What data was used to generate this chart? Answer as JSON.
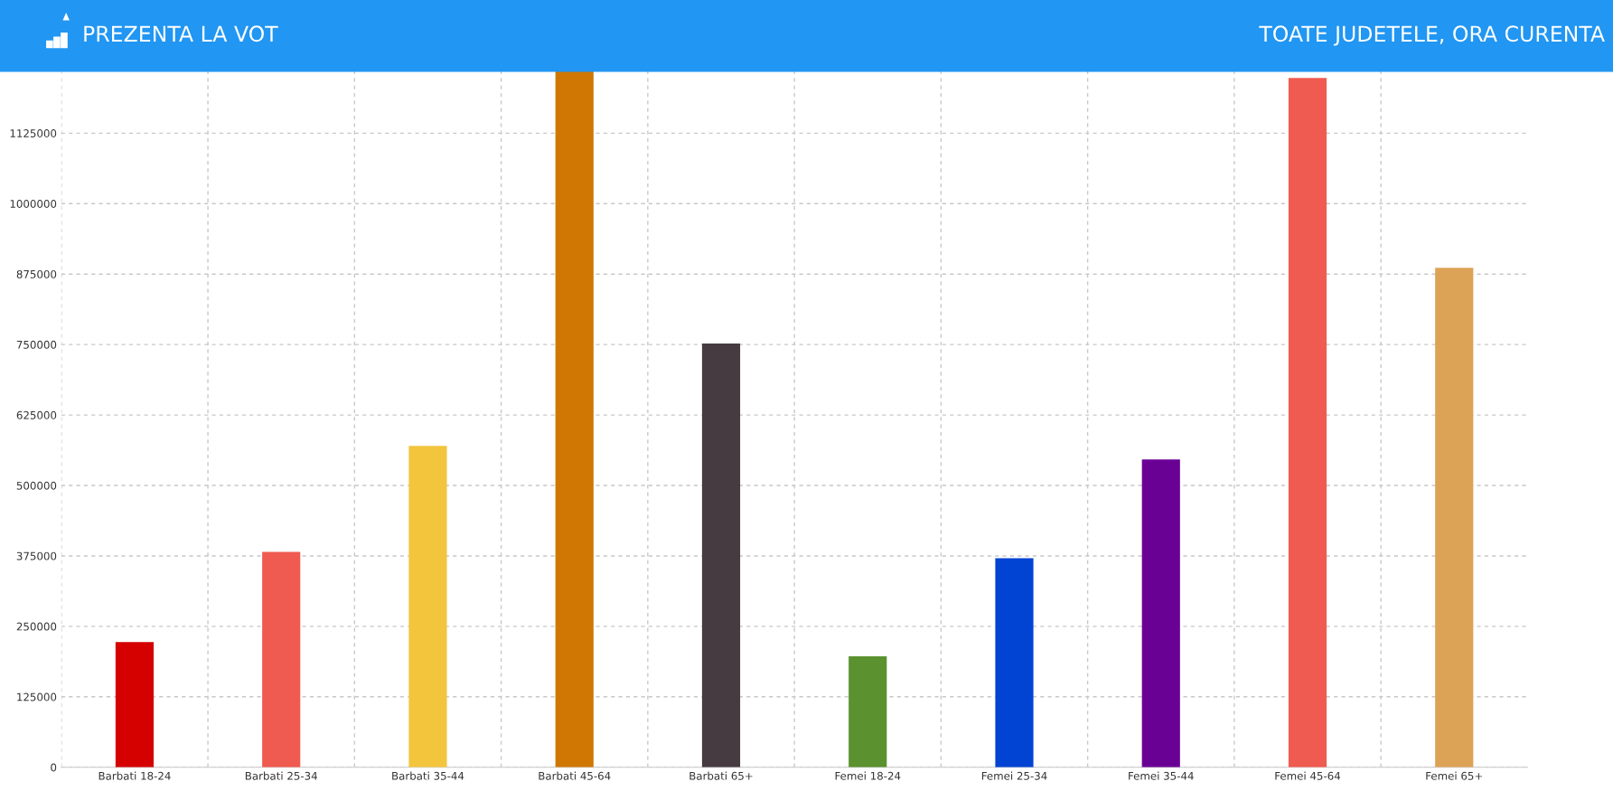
{
  "chart_data": {
    "type": "bar",
    "title": "PREZENTA LA VOT",
    "subtitle": "TOATE JUDETELE, ORA CURENTA",
    "categories": [
      "Barbati 18-24",
      "Barbati 25-34",
      "Barbati 35-44",
      "Barbati 45-64",
      "Barbati 65+",
      "Femei 18-24",
      "Femei 25-34",
      "Femei 35-44",
      "Femei 45-64",
      "Femei 65+"
    ],
    "values": [
      222000,
      382000,
      570000,
      1235000,
      752000,
      197000,
      371000,
      546000,
      1223000,
      886000
    ],
    "colors": [
      "#d50000",
      "#ef5b50",
      "#f2c53d",
      "#d07703",
      "#463b40",
      "#5b912f",
      "#0143d3",
      "#6a0195",
      "#ef5b50",
      "#dca356"
    ],
    "ylim": [
      0,
      1235000
    ],
    "yticks": [
      0,
      125000,
      250000,
      375000,
      500000,
      625000,
      750000,
      875000,
      1000000,
      1125000
    ],
    "grid": true
  }
}
